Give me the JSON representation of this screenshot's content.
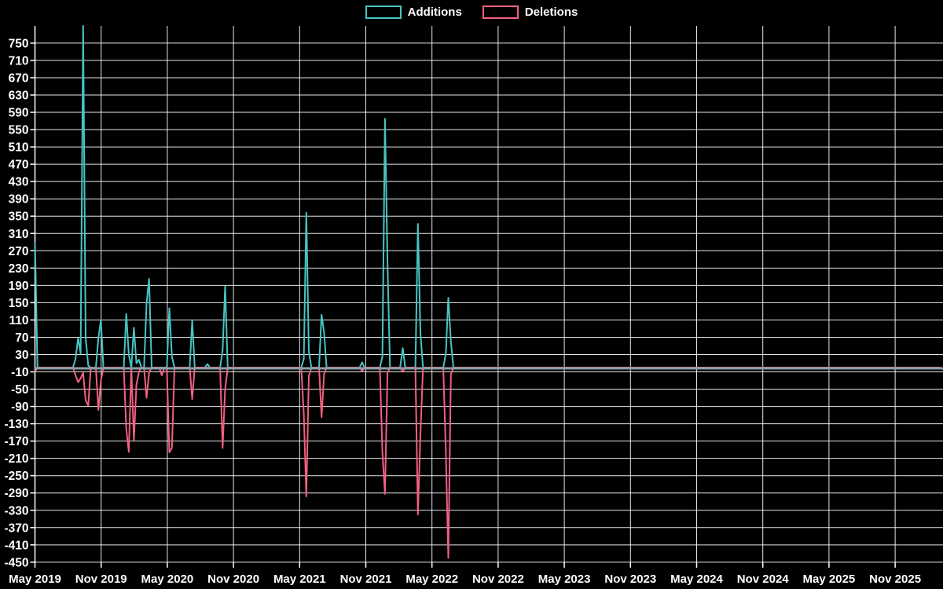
{
  "legend": {
    "items": [
      {
        "label": "Additions",
        "color": "#48c4c4"
      },
      {
        "label": "Deletions",
        "color": "#f25f80"
      }
    ]
  },
  "colors": {
    "background": "#000000",
    "grid": "#ffffff",
    "axis_text": "#ffffff",
    "zero_line": "#8c9ea8",
    "additions": "#48c4c4",
    "deletions": "#f25f80"
  },
  "chart_data": {
    "type": "line",
    "title": "",
    "xlabel": "",
    "ylabel": "",
    "legend_position": "top-center",
    "grid": true,
    "background": "#000000",
    "x_axis": {
      "tick_labels": [
        "May 2019",
        "Nov 2019",
        "May 2020",
        "Nov 2020",
        "May 2021",
        "Nov 2021",
        "May 2022",
        "Nov 2022",
        "May 2023",
        "Nov 2023",
        "May 2024",
        "Nov 2024",
        "May 2025",
        "Nov 2025"
      ],
      "start_date": "2019-05-05",
      "interval": "weekly",
      "weeks_total": 358,
      "weeks_per_tick": 26.09
    },
    "y_axis": {
      "min": -450,
      "max": 750,
      "tick_step": 40,
      "tick_labels": [
        "750",
        "710",
        "670",
        "630",
        "590",
        "550",
        "510",
        "470",
        "430",
        "390",
        "350",
        "310",
        "270",
        "230",
        "190",
        "150",
        "110",
        "70",
        "30",
        "-10",
        "-50",
        "-90",
        "-130",
        "-170",
        "-210",
        "-250",
        "-290",
        "-330",
        "-370",
        "-410",
        "-450"
      ]
    },
    "series": [
      {
        "name": "Additions",
        "color": "#48c4c4",
        "default_value": 0
      },
      {
        "name": "Deletions",
        "color": "#f25f80",
        "default_value": 0
      }
    ],
    "spikes": [
      {
        "week": 0,
        "additions": 290,
        "deletions": -10
      },
      {
        "week": 16,
        "additions": 20,
        "deletions": -18
      },
      {
        "week": 17,
        "additions": 68,
        "deletions": -34
      },
      {
        "week": 18,
        "additions": 32,
        "deletions": -25
      },
      {
        "week": 19,
        "additions": 790,
        "deletions": -12
      },
      {
        "week": 20,
        "additions": 68,
        "deletions": -76
      },
      {
        "week": 21,
        "additions": 5,
        "deletions": -88
      },
      {
        "week": 25,
        "additions": 68,
        "deletions": -98
      },
      {
        "week": 26,
        "additions": 110,
        "deletions": -30
      },
      {
        "week": 36,
        "additions": 124,
        "deletions": -142
      },
      {
        "week": 37,
        "additions": 30,
        "deletions": -195
      },
      {
        "week": 39,
        "additions": 92,
        "deletions": -168
      },
      {
        "week": 40,
        "additions": 10,
        "deletions": -40
      },
      {
        "week": 41,
        "additions": 18,
        "deletions": -10
      },
      {
        "week": 44,
        "additions": 148,
        "deletions": -70
      },
      {
        "week": 45,
        "additions": 205,
        "deletions": -12
      },
      {
        "week": 50,
        "additions": 0,
        "deletions": -18
      },
      {
        "week": 53,
        "additions": 137,
        "deletions": -196
      },
      {
        "week": 54,
        "additions": 25,
        "deletions": -186
      },
      {
        "week": 62,
        "additions": 109,
        "deletions": -73
      },
      {
        "week": 68,
        "additions": 8,
        "deletions": 0
      },
      {
        "week": 74,
        "additions": 40,
        "deletions": -186
      },
      {
        "week": 75,
        "additions": 188,
        "deletions": -50
      },
      {
        "week": 106,
        "additions": 20,
        "deletions": -108
      },
      {
        "week": 107,
        "additions": 358,
        "deletions": -298
      },
      {
        "week": 108,
        "additions": 38,
        "deletions": -20
      },
      {
        "week": 113,
        "additions": 122,
        "deletions": -115
      },
      {
        "week": 114,
        "additions": 81,
        "deletions": -15
      },
      {
        "week": 129,
        "additions": 12,
        "deletions": -8
      },
      {
        "week": 137,
        "additions": 25,
        "deletions": -195
      },
      {
        "week": 138,
        "additions": 575,
        "deletions": -292
      },
      {
        "week": 139,
        "additions": 243,
        "deletions": -12
      },
      {
        "week": 145,
        "additions": 45,
        "deletions": -10
      },
      {
        "week": 151,
        "additions": 332,
        "deletions": -340
      },
      {
        "week": 152,
        "additions": 80,
        "deletions": -155
      },
      {
        "week": 162,
        "additions": 32,
        "deletions": -193
      },
      {
        "week": 163,
        "additions": 161,
        "deletions": -440
      },
      {
        "week": 164,
        "additions": 59,
        "deletions": -15
      }
    ]
  }
}
